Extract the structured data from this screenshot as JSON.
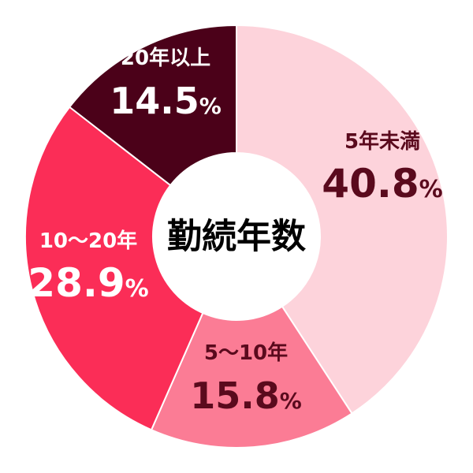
{
  "chart_data": {
    "type": "pie",
    "donut": true,
    "title": "勤続年数",
    "value_suffix": "%",
    "categories": [
      "5年未満",
      "5〜10年",
      "10〜20年",
      "20年以上"
    ],
    "values": [
      40.8,
      15.8,
      28.9,
      14.5
    ],
    "value_labels": [
      "40.8",
      "15.8",
      "28.9",
      "14.5"
    ],
    "colors": {
      "slices": [
        "#fdd3db",
        "#fb7c95",
        "#fb2d57",
        "#4b0119"
      ],
      "name_text": [
        "#5a0a1d",
        "#5a0a1d",
        "#ffffff",
        "#ffffff"
      ],
      "value_text": [
        "#5a0a1d",
        "#5a0a1d",
        "#ffffff",
        "#ffffff"
      ],
      "center": "#ffffff",
      "center_text": "#000000",
      "separator": "#ffffff"
    },
    "start_angle_deg": 0,
    "direction": "clockwise"
  }
}
